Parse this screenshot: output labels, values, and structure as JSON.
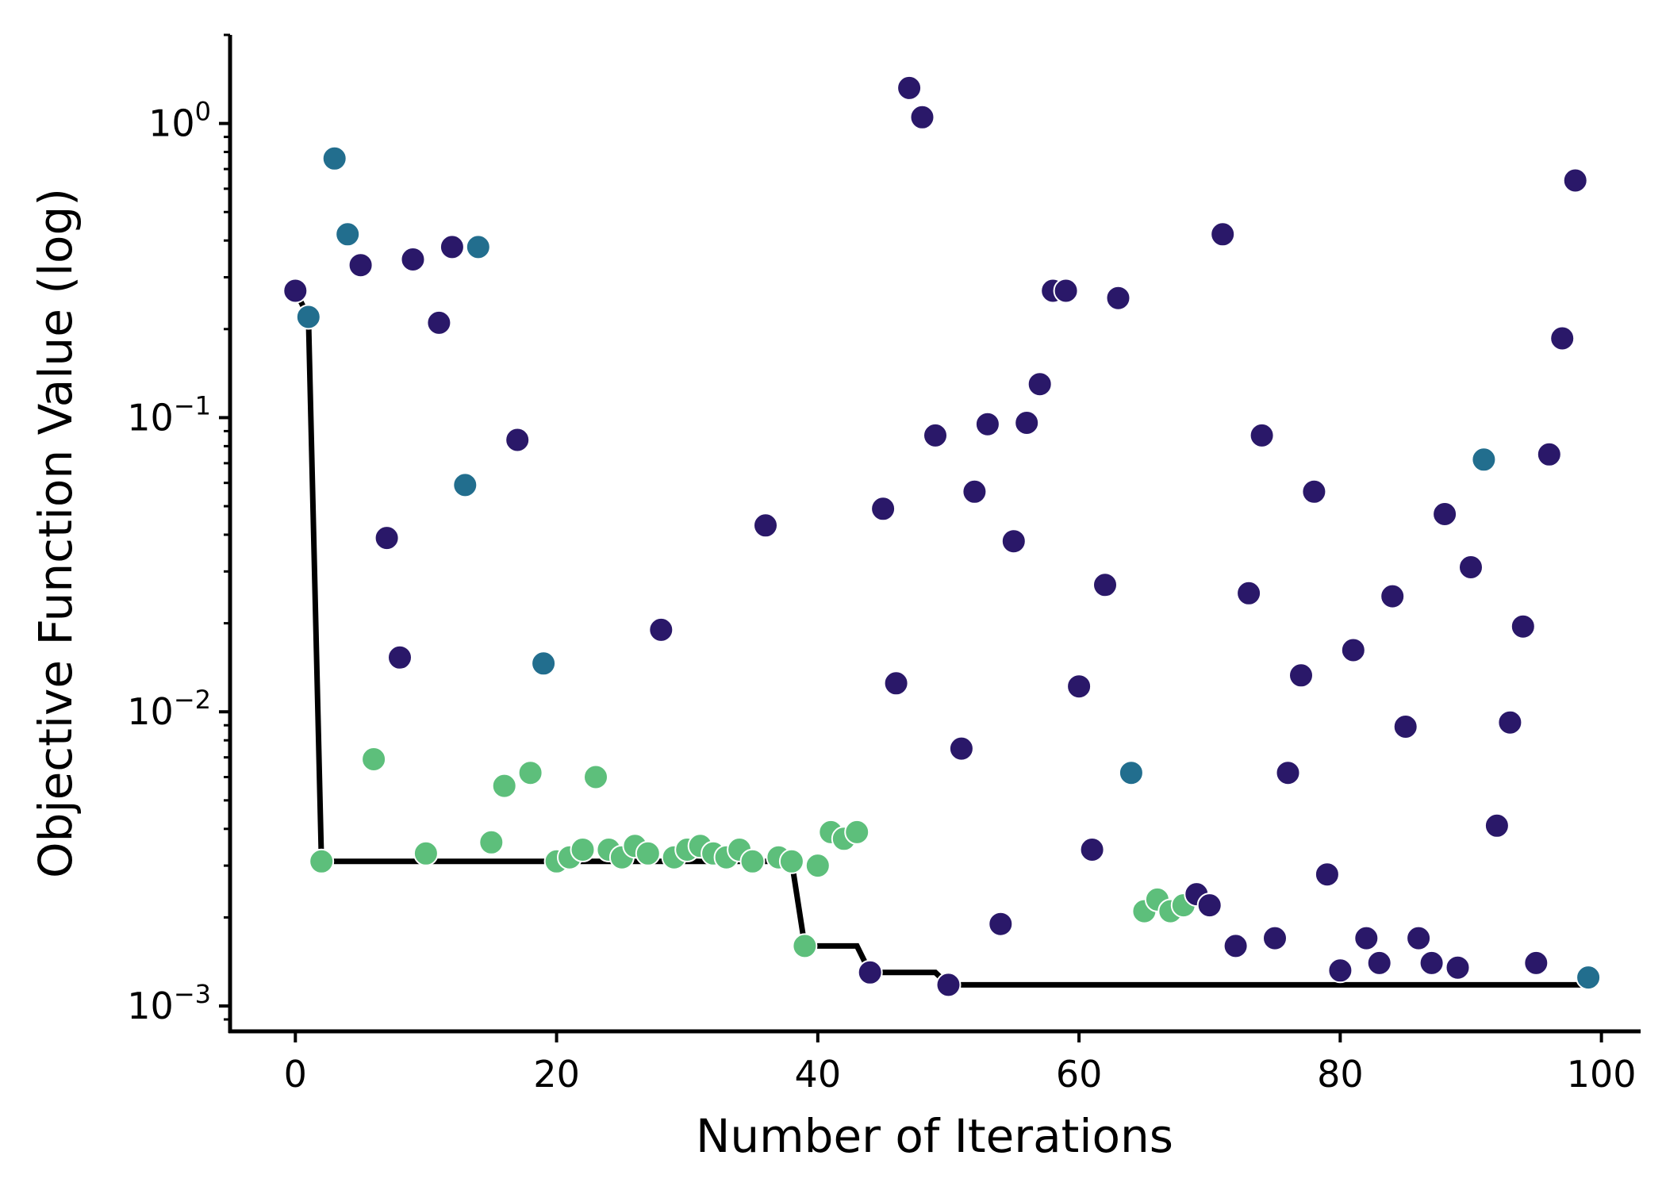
{
  "chart_data": {
    "type": "scatter",
    "title": "",
    "xlabel": "Number of Iterations",
    "ylabel": "Objective Function Value (log)",
    "xlim": [
      -5,
      103
    ],
    "ylim": [
      0.00082,
      2.0
    ],
    "yscale": "log",
    "grid": false,
    "x_ticks": [
      0,
      20,
      40,
      60,
      80,
      100
    ],
    "x_tick_labels": [
      "0",
      "20",
      "40",
      "60",
      "80",
      "100"
    ],
    "y_ticks": [
      0.001,
      0.01,
      0.1,
      1
    ],
    "y_tick_labels": [
      {
        "base": "10",
        "exp": "−3"
      },
      {
        "base": "10",
        "exp": "−2"
      },
      {
        "base": "10",
        "exp": "−1"
      },
      {
        "base": "10",
        "exp": "0"
      }
    ],
    "colors": {
      "dark": "#2a1869",
      "teal": "#226e8e",
      "green": "#5dbf7b",
      "line": "#000000"
    },
    "points": [
      {
        "x": 0,
        "y": 0.27,
        "g": "dark"
      },
      {
        "x": 1,
        "y": 0.22,
        "g": "teal"
      },
      {
        "x": 2,
        "y": 0.0031,
        "g": "green"
      },
      {
        "x": 3,
        "y": 0.76,
        "g": "teal"
      },
      {
        "x": 4,
        "y": 0.42,
        "g": "teal"
      },
      {
        "x": 5,
        "y": 0.33,
        "g": "dark"
      },
      {
        "x": 6,
        "y": 0.0069,
        "g": "green"
      },
      {
        "x": 7,
        "y": 0.039,
        "g": "dark"
      },
      {
        "x": 8,
        "y": 0.0153,
        "g": "dark"
      },
      {
        "x": 9,
        "y": 0.345,
        "g": "dark"
      },
      {
        "x": 10,
        "y": 0.0033,
        "g": "green"
      },
      {
        "x": 11,
        "y": 0.21,
        "g": "dark"
      },
      {
        "x": 12,
        "y": 0.38,
        "g": "dark"
      },
      {
        "x": 13,
        "y": 0.059,
        "g": "teal"
      },
      {
        "x": 14,
        "y": 0.38,
        "g": "teal"
      },
      {
        "x": 15,
        "y": 0.0036,
        "g": "green"
      },
      {
        "x": 16,
        "y": 0.0056,
        "g": "green"
      },
      {
        "x": 17,
        "y": 0.084,
        "g": "dark"
      },
      {
        "x": 18,
        "y": 0.0062,
        "g": "green"
      },
      {
        "x": 19,
        "y": 0.0146,
        "g": "teal"
      },
      {
        "x": 20,
        "y": 0.0031,
        "g": "green"
      },
      {
        "x": 21,
        "y": 0.0032,
        "g": "green"
      },
      {
        "x": 22,
        "y": 0.0034,
        "g": "green"
      },
      {
        "x": 23,
        "y": 0.006,
        "g": "green"
      },
      {
        "x": 24,
        "y": 0.0034,
        "g": "green"
      },
      {
        "x": 25,
        "y": 0.0032,
        "g": "green"
      },
      {
        "x": 26,
        "y": 0.0035,
        "g": "green"
      },
      {
        "x": 27,
        "y": 0.0033,
        "g": "green"
      },
      {
        "x": 28,
        "y": 0.019,
        "g": "dark"
      },
      {
        "x": 29,
        "y": 0.0032,
        "g": "green"
      },
      {
        "x": 30,
        "y": 0.0034,
        "g": "green"
      },
      {
        "x": 31,
        "y": 0.0035,
        "g": "green"
      },
      {
        "x": 32,
        "y": 0.0033,
        "g": "green"
      },
      {
        "x": 33,
        "y": 0.0032,
        "g": "green"
      },
      {
        "x": 34,
        "y": 0.0034,
        "g": "green"
      },
      {
        "x": 35,
        "y": 0.0031,
        "g": "green"
      },
      {
        "x": 36,
        "y": 0.043,
        "g": "dark"
      },
      {
        "x": 37,
        "y": 0.0032,
        "g": "green"
      },
      {
        "x": 38,
        "y": 0.0031,
        "g": "green"
      },
      {
        "x": 39,
        "y": 0.0016,
        "g": "green"
      },
      {
        "x": 40,
        "y": 0.003,
        "g": "green"
      },
      {
        "x": 41,
        "y": 0.0039,
        "g": "green"
      },
      {
        "x": 42,
        "y": 0.0037,
        "g": "green"
      },
      {
        "x": 43,
        "y": 0.0039,
        "g": "green"
      },
      {
        "x": 44,
        "y": 0.0013,
        "g": "dark"
      },
      {
        "x": 45,
        "y": 0.049,
        "g": "dark"
      },
      {
        "x": 46,
        "y": 0.0125,
        "g": "dark"
      },
      {
        "x": 47,
        "y": 1.32,
        "g": "dark"
      },
      {
        "x": 48,
        "y": 1.05,
        "g": "dark"
      },
      {
        "x": 49,
        "y": 0.087,
        "g": "dark"
      },
      {
        "x": 50,
        "y": 0.00118,
        "g": "dark"
      },
      {
        "x": 51,
        "y": 0.0075,
        "g": "dark"
      },
      {
        "x": 52,
        "y": 0.056,
        "g": "dark"
      },
      {
        "x": 53,
        "y": 0.095,
        "g": "dark"
      },
      {
        "x": 54,
        "y": 0.0019,
        "g": "dark"
      },
      {
        "x": 55,
        "y": 0.038,
        "g": "dark"
      },
      {
        "x": 56,
        "y": 0.096,
        "g": "dark"
      },
      {
        "x": 57,
        "y": 0.13,
        "g": "dark"
      },
      {
        "x": 58,
        "y": 0.27,
        "g": "dark"
      },
      {
        "x": 59,
        "y": 0.27,
        "g": "dark"
      },
      {
        "x": 60,
        "y": 0.0122,
        "g": "dark"
      },
      {
        "x": 61,
        "y": 0.0034,
        "g": "dark"
      },
      {
        "x": 62,
        "y": 0.027,
        "g": "dark"
      },
      {
        "x": 63,
        "y": 0.255,
        "g": "dark"
      },
      {
        "x": 64,
        "y": 0.0062,
        "g": "teal"
      },
      {
        "x": 65,
        "y": 0.0021,
        "g": "green"
      },
      {
        "x": 66,
        "y": 0.0023,
        "g": "green"
      },
      {
        "x": 67,
        "y": 0.0021,
        "g": "green"
      },
      {
        "x": 68,
        "y": 0.0022,
        "g": "green"
      },
      {
        "x": 69,
        "y": 0.0024,
        "g": "dark"
      },
      {
        "x": 70,
        "y": 0.0022,
        "g": "dark"
      },
      {
        "x": 71,
        "y": 0.42,
        "g": "dark"
      },
      {
        "x": 72,
        "y": 0.0016,
        "g": "dark"
      },
      {
        "x": 73,
        "y": 0.0253,
        "g": "dark"
      },
      {
        "x": 74,
        "y": 0.087,
        "g": "dark"
      },
      {
        "x": 75,
        "y": 0.0017,
        "g": "dark"
      },
      {
        "x": 76,
        "y": 0.0062,
        "g": "dark"
      },
      {
        "x": 77,
        "y": 0.0133,
        "g": "dark"
      },
      {
        "x": 78,
        "y": 0.056,
        "g": "dark"
      },
      {
        "x": 79,
        "y": 0.0028,
        "g": "dark"
      },
      {
        "x": 80,
        "y": 0.00132,
        "g": "dark"
      },
      {
        "x": 81,
        "y": 0.0162,
        "g": "dark"
      },
      {
        "x": 82,
        "y": 0.0017,
        "g": "dark"
      },
      {
        "x": 83,
        "y": 0.0014,
        "g": "dark"
      },
      {
        "x": 84,
        "y": 0.0247,
        "g": "dark"
      },
      {
        "x": 85,
        "y": 0.0089,
        "g": "dark"
      },
      {
        "x": 86,
        "y": 0.0017,
        "g": "dark"
      },
      {
        "x": 87,
        "y": 0.0014,
        "g": "dark"
      },
      {
        "x": 88,
        "y": 0.047,
        "g": "dark"
      },
      {
        "x": 89,
        "y": 0.00135,
        "g": "dark"
      },
      {
        "x": 90,
        "y": 0.031,
        "g": "dark"
      },
      {
        "x": 91,
        "y": 0.072,
        "g": "teal"
      },
      {
        "x": 92,
        "y": 0.0041,
        "g": "dark"
      },
      {
        "x": 93,
        "y": 0.0092,
        "g": "dark"
      },
      {
        "x": 94,
        "y": 0.0195,
        "g": "dark"
      },
      {
        "x": 95,
        "y": 0.0014,
        "g": "dark"
      },
      {
        "x": 96,
        "y": 0.075,
        "g": "dark"
      },
      {
        "x": 97,
        "y": 0.186,
        "g": "dark"
      },
      {
        "x": 98,
        "y": 0.64,
        "g": "dark"
      },
      {
        "x": 99,
        "y": 0.00125,
        "g": "teal"
      }
    ],
    "best_so_far": [
      {
        "x": 0,
        "y": 0.27
      },
      {
        "x": 1,
        "y": 0.22
      },
      {
        "x": 2,
        "y": 0.0031
      },
      {
        "x": 38,
        "y": 0.0031
      },
      {
        "x": 39,
        "y": 0.0016
      },
      {
        "x": 43,
        "y": 0.0016
      },
      {
        "x": 44,
        "y": 0.0013
      },
      {
        "x": 49,
        "y": 0.0013
      },
      {
        "x": 50,
        "y": 0.00118
      },
      {
        "x": 99,
        "y": 0.00118
      }
    ]
  }
}
